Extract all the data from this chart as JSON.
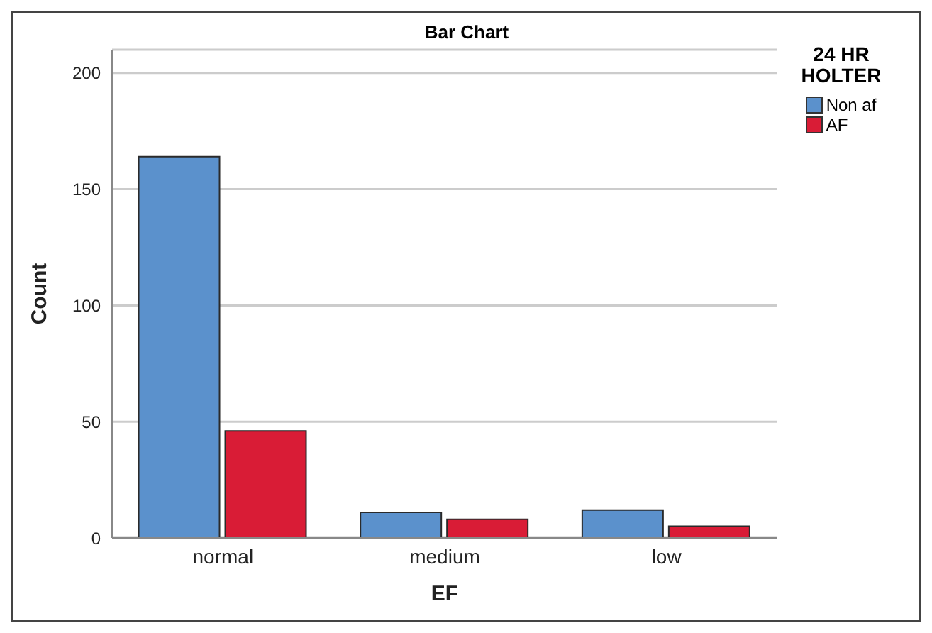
{
  "chart_data": {
    "type": "bar",
    "title": "Bar Chart",
    "xlabel": "EF",
    "ylabel": "Count",
    "legend_title": "24 HR HOLTER",
    "categories": [
      "normal",
      "medium",
      "low"
    ],
    "series": [
      {
        "name": "Non af",
        "color": "#5b91cc",
        "values": [
          164,
          11,
          12
        ]
      },
      {
        "name": "AF",
        "color": "#d91c36",
        "values": [
          46,
          8,
          5
        ]
      }
    ],
    "ylim": [
      0,
      210
    ],
    "yticks": [
      0,
      50,
      100,
      150,
      200
    ],
    "grid": "y",
    "legend": "top right"
  }
}
